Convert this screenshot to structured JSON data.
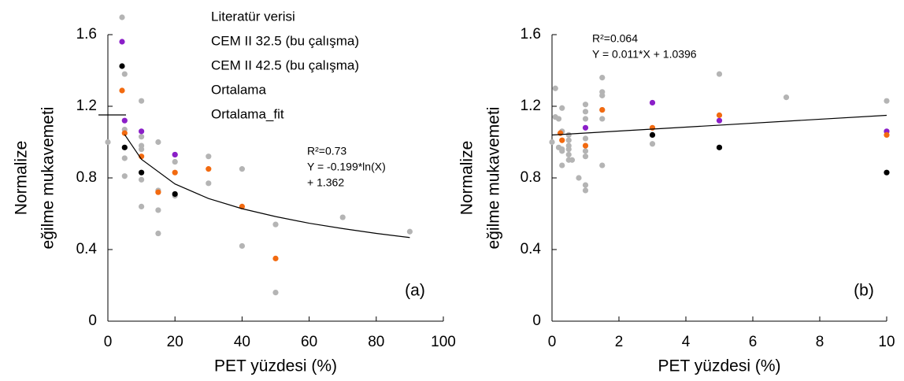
{
  "chart_data": [
    {
      "type": "scatter",
      "xlabel": "PET yüzdesi (%)",
      "ylabel": [
        "Normalize",
        "eğilme mukavemeti"
      ],
      "xlim": [
        0,
        100
      ],
      "ylim": [
        0,
        1.6
      ],
      "xticks": [
        0,
        20,
        40,
        60,
        80,
        100
      ],
      "yticks": [
        0,
        0.4,
        0.8,
        1.2,
        1.6
      ],
      "legend": "upper left",
      "annotations": [
        "R²=0.73",
        "Y = -0.199*ln(X)",
        "+ 1.362"
      ],
      "panel_label": "(a)",
      "series": [
        {
          "name": "Literatür verisi",
          "color": "#b4b4b4",
          "style": "points",
          "x": [
            0,
            5,
            5,
            5,
            5,
            10,
            10,
            10,
            10,
            10,
            10,
            15,
            15,
            15,
            15,
            20,
            20,
            20,
            30,
            30,
            40,
            40,
            50,
            50,
            70,
            90
          ],
          "values": [
            1.0,
            1.38,
            1.07,
            0.91,
            0.81,
            1.23,
            1.03,
            0.98,
            0.96,
            0.79,
            0.64,
            1.0,
            0.73,
            0.62,
            0.49,
            0.93,
            0.89,
            0.7,
            0.92,
            0.77,
            0.85,
            0.42,
            0.54,
            0.16,
            0.58,
            0.5
          ]
        },
        {
          "name": "CEM II 32.5 (bu çalışma)",
          "color": "#8b1fc8",
          "style": "points",
          "x": [
            5,
            10,
            20
          ],
          "values": [
            1.12,
            1.06,
            0.93
          ]
        },
        {
          "name": "CEM II 42.5 (bu çalışma)",
          "color": "#000000",
          "style": "points",
          "x": [
            5,
            10,
            20
          ],
          "values": [
            0.97,
            0.83,
            0.71
          ]
        },
        {
          "name": "Ortalama",
          "color": "#f26a10",
          "style": "points",
          "x": [
            5,
            10,
            15,
            20,
            30,
            40,
            50
          ],
          "values": [
            1.05,
            0.92,
            0.72,
            0.83,
            0.85,
            0.64,
            0.35
          ]
        },
        {
          "name": "Ortalama_fit",
          "color": "#000000",
          "style": "line",
          "x": [
            5,
            10,
            20,
            30,
            40,
            50,
            60,
            70,
            80,
            90
          ],
          "values": [
            1.042,
            0.904,
            0.766,
            0.685,
            0.628,
            0.584,
            0.547,
            0.517,
            0.49,
            0.467
          ]
        }
      ]
    },
    {
      "type": "scatter",
      "xlabel": "PET yüzdesi (%)",
      "ylabel": [
        "Normalize",
        "eğilme mukavemeti"
      ],
      "xlim": [
        0,
        10
      ],
      "ylim": [
        0,
        1.6
      ],
      "xticks": [
        0,
        2,
        4,
        6,
        8,
        10
      ],
      "yticks": [
        0,
        0.4,
        0.8,
        1.2,
        1.6
      ],
      "annotations": [
        "R²=0.064",
        "Y = 0.011*X + 1.0396"
      ],
      "panel_label": "(b)",
      "series": [
        {
          "color": "#b4b4b4",
          "style": "points",
          "x": [
            0,
            0.1,
            0.1,
            0.2,
            0.2,
            0.3,
            0.3,
            0.3,
            0.3,
            0.3,
            0.5,
            0.5,
            0.5,
            0.5,
            0.5,
            0.5,
            0.6,
            0.8,
            1,
            1,
            1,
            1,
            1,
            1,
            1,
            1,
            1.5,
            1.5,
            1.5,
            1.5,
            1.5,
            1.5,
            3,
            5,
            7,
            10
          ],
          "values": [
            1.0,
            1.14,
            1.3,
            0.97,
            1.13,
            0.96,
            1.19,
            1.06,
            0.95,
            0.87,
            1.04,
            1.01,
            0.98,
            0.96,
            0.93,
            0.9,
            0.9,
            0.8,
            1.21,
            1.17,
            1.13,
            1.02,
            0.95,
            0.92,
            0.76,
            0.73,
            1.36,
            1.28,
            1.26,
            1.18,
            1.13,
            0.87,
            0.99,
            1.38,
            1.25,
            1.23
          ]
        },
        {
          "color": "#8b1fc8",
          "style": "points",
          "x": [
            1,
            3,
            5,
            10
          ],
          "values": [
            1.08,
            1.22,
            1.12,
            1.06
          ]
        },
        {
          "color": "#000000",
          "style": "points",
          "x": [
            3,
            5,
            10
          ],
          "values": [
            1.04,
            0.97,
            0.83
          ]
        },
        {
          "color": "#f26a10",
          "style": "points",
          "x": [
            0.25,
            0.3,
            1,
            1.5,
            3,
            5,
            10
          ],
          "values": [
            1.05,
            1.01,
            0.98,
            1.18,
            1.08,
            1.15,
            1.04
          ]
        },
        {
          "color": "#000000",
          "style": "line",
          "x": [
            0,
            10
          ],
          "values": [
            1.0396,
            1.1496
          ]
        }
      ]
    }
  ]
}
